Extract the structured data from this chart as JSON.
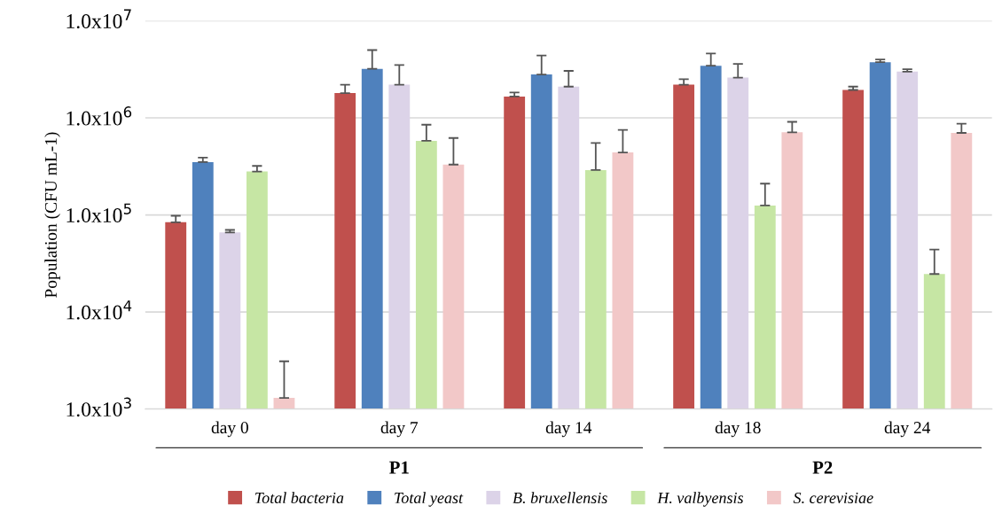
{
  "chart_data": {
    "type": "bar",
    "ylabel": "Population (CFU mL-1)",
    "categories": [
      "day 0",
      "day 7",
      "day 14",
      "day 18",
      "day 24"
    ],
    "series": [
      {
        "name": "Total bacteria",
        "color": "#c0504d",
        "values": [
          84000,
          1800000,
          1660000,
          2200000,
          1940000
        ],
        "errors": [
          [
            84000,
            98000
          ],
          [
            1800000,
            2200000
          ],
          [
            1660000,
            1830000
          ],
          [
            2200000,
            2500000
          ],
          [
            1940000,
            2100000
          ]
        ]
      },
      {
        "name": "Total yeast",
        "color": "#4f81bd",
        "values": [
          350000,
          3200000,
          2800000,
          3450000,
          3750000
        ],
        "errors": [
          [
            350000,
            390000
          ],
          [
            3200000,
            5000000
          ],
          [
            2800000,
            4400000
          ],
          [
            3450000,
            4600000
          ],
          [
            3750000,
            4000000
          ]
        ]
      },
      {
        "name": "B. bruxellensis",
        "color": "#dcd3e8",
        "values": [
          66000,
          2200000,
          2100000,
          2600000,
          3000000
        ],
        "errors": [
          [
            66000,
            70000
          ],
          [
            2200000,
            3500000
          ],
          [
            2100000,
            3050000
          ],
          [
            2600000,
            3600000
          ],
          [
            3000000,
            3170000
          ]
        ]
      },
      {
        "name": "H. valbyensis",
        "color": "#c6e6a4",
        "values": [
          280000,
          580000,
          290000,
          125000,
          24600
        ],
        "errors": [
          [
            280000,
            320000
          ],
          [
            580000,
            850000
          ],
          [
            290000,
            550000
          ],
          [
            125000,
            210000
          ],
          [
            24600,
            44000
          ]
        ]
      },
      {
        "name": "S. cerevisiae",
        "color": "#f2c8c8",
        "values": [
          1300,
          330000,
          440000,
          710000,
          700000
        ],
        "errors": [
          [
            1300,
            3100
          ],
          [
            330000,
            620000
          ],
          [
            440000,
            750000
          ],
          [
            710000,
            910000
          ],
          [
            700000,
            870000
          ]
        ]
      }
    ],
    "annotations": [
      "P1",
      "P2"
    ],
    "log": "y",
    "ylim": [
      1000,
      10000000
    ],
    "yticks": [
      {
        "value": 1000,
        "label": "1.0x10$^{3}$"
      },
      {
        "value": 10000,
        "label": "1.0x10$^{4}$"
      },
      {
        "value": 100000,
        "label": "1.0x10$^{5}$"
      },
      {
        "value": 1000000,
        "label": "1.0x10$^{6}$"
      },
      {
        "value": 10000000,
        "label": "1.0x10$^{7}$"
      }
    ],
    "grid": "y",
    "legend": "bottom"
  }
}
